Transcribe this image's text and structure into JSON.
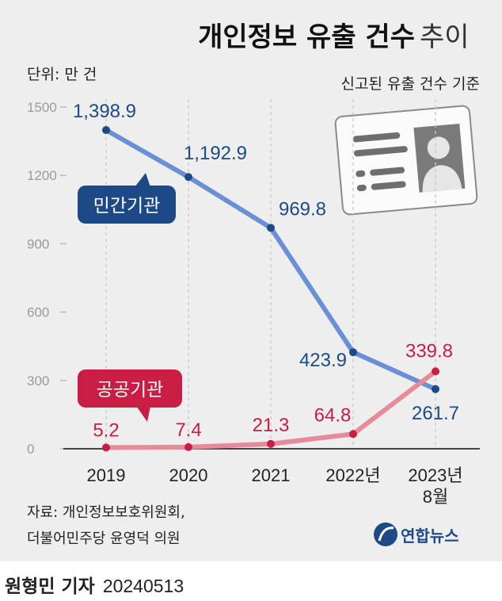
{
  "header": {
    "title_bold": "개인정보 유출 건수",
    "title_light": "추이",
    "unit": "단위: 만 건",
    "basis": "신고된 유출 건수 기준"
  },
  "chart_data": {
    "type": "line",
    "title": "개인정보 유출 건수 추이",
    "subtitle": "신고된 유출 건수 기준",
    "unit": "단위: 만 건",
    "categories": [
      "2019",
      "2020",
      "2021",
      "2022년",
      "2023년 8월"
    ],
    "x_tick_lines": [
      [
        "2019"
      ],
      [
        "2020"
      ],
      [
        "2021"
      ],
      [
        "2022년"
      ],
      [
        "2023년",
        "8월"
      ]
    ],
    "ylim": [
      0,
      1500
    ],
    "yticks": [
      0,
      300,
      600,
      900,
      1200,
      1500
    ],
    "grid": "vertical dashed",
    "series": [
      {
        "name": "민간기관",
        "color": "#6b8fd6",
        "marker_color": "#1d4a86",
        "label_color": "#1d4a86",
        "values": [
          1398.9,
          1192.9,
          969.8,
          423.9,
          261.7
        ],
        "labels": [
          "1,398.9",
          "1,192.9",
          "969.8",
          "423.9",
          "261.7"
        ]
      },
      {
        "name": "공공기관",
        "color": "#e88b98",
        "marker_color": "#c81d45",
        "label_color": "#c81d45",
        "values": [
          5.2,
          7.4,
          21.3,
          64.8,
          339.8
        ],
        "labels": [
          "5.2",
          "7.4",
          "21.3",
          "64.8",
          "339.8"
        ]
      }
    ]
  },
  "legend": {
    "private": {
      "label": "민간기관",
      "color": "#1d4a86"
    },
    "public": {
      "label": "공공기관",
      "color": "#c81d45"
    }
  },
  "source": {
    "line1": "자료: 개인정보보호위원회,",
    "line2": "더불어민주당 윤영덕 의원"
  },
  "logo": {
    "text": "연합뉴스",
    "color": "#1d4a86"
  },
  "icon": {
    "name": "id-card-icon"
  },
  "credit": {
    "reporter": "원형민 기자",
    "date": "20240513"
  }
}
